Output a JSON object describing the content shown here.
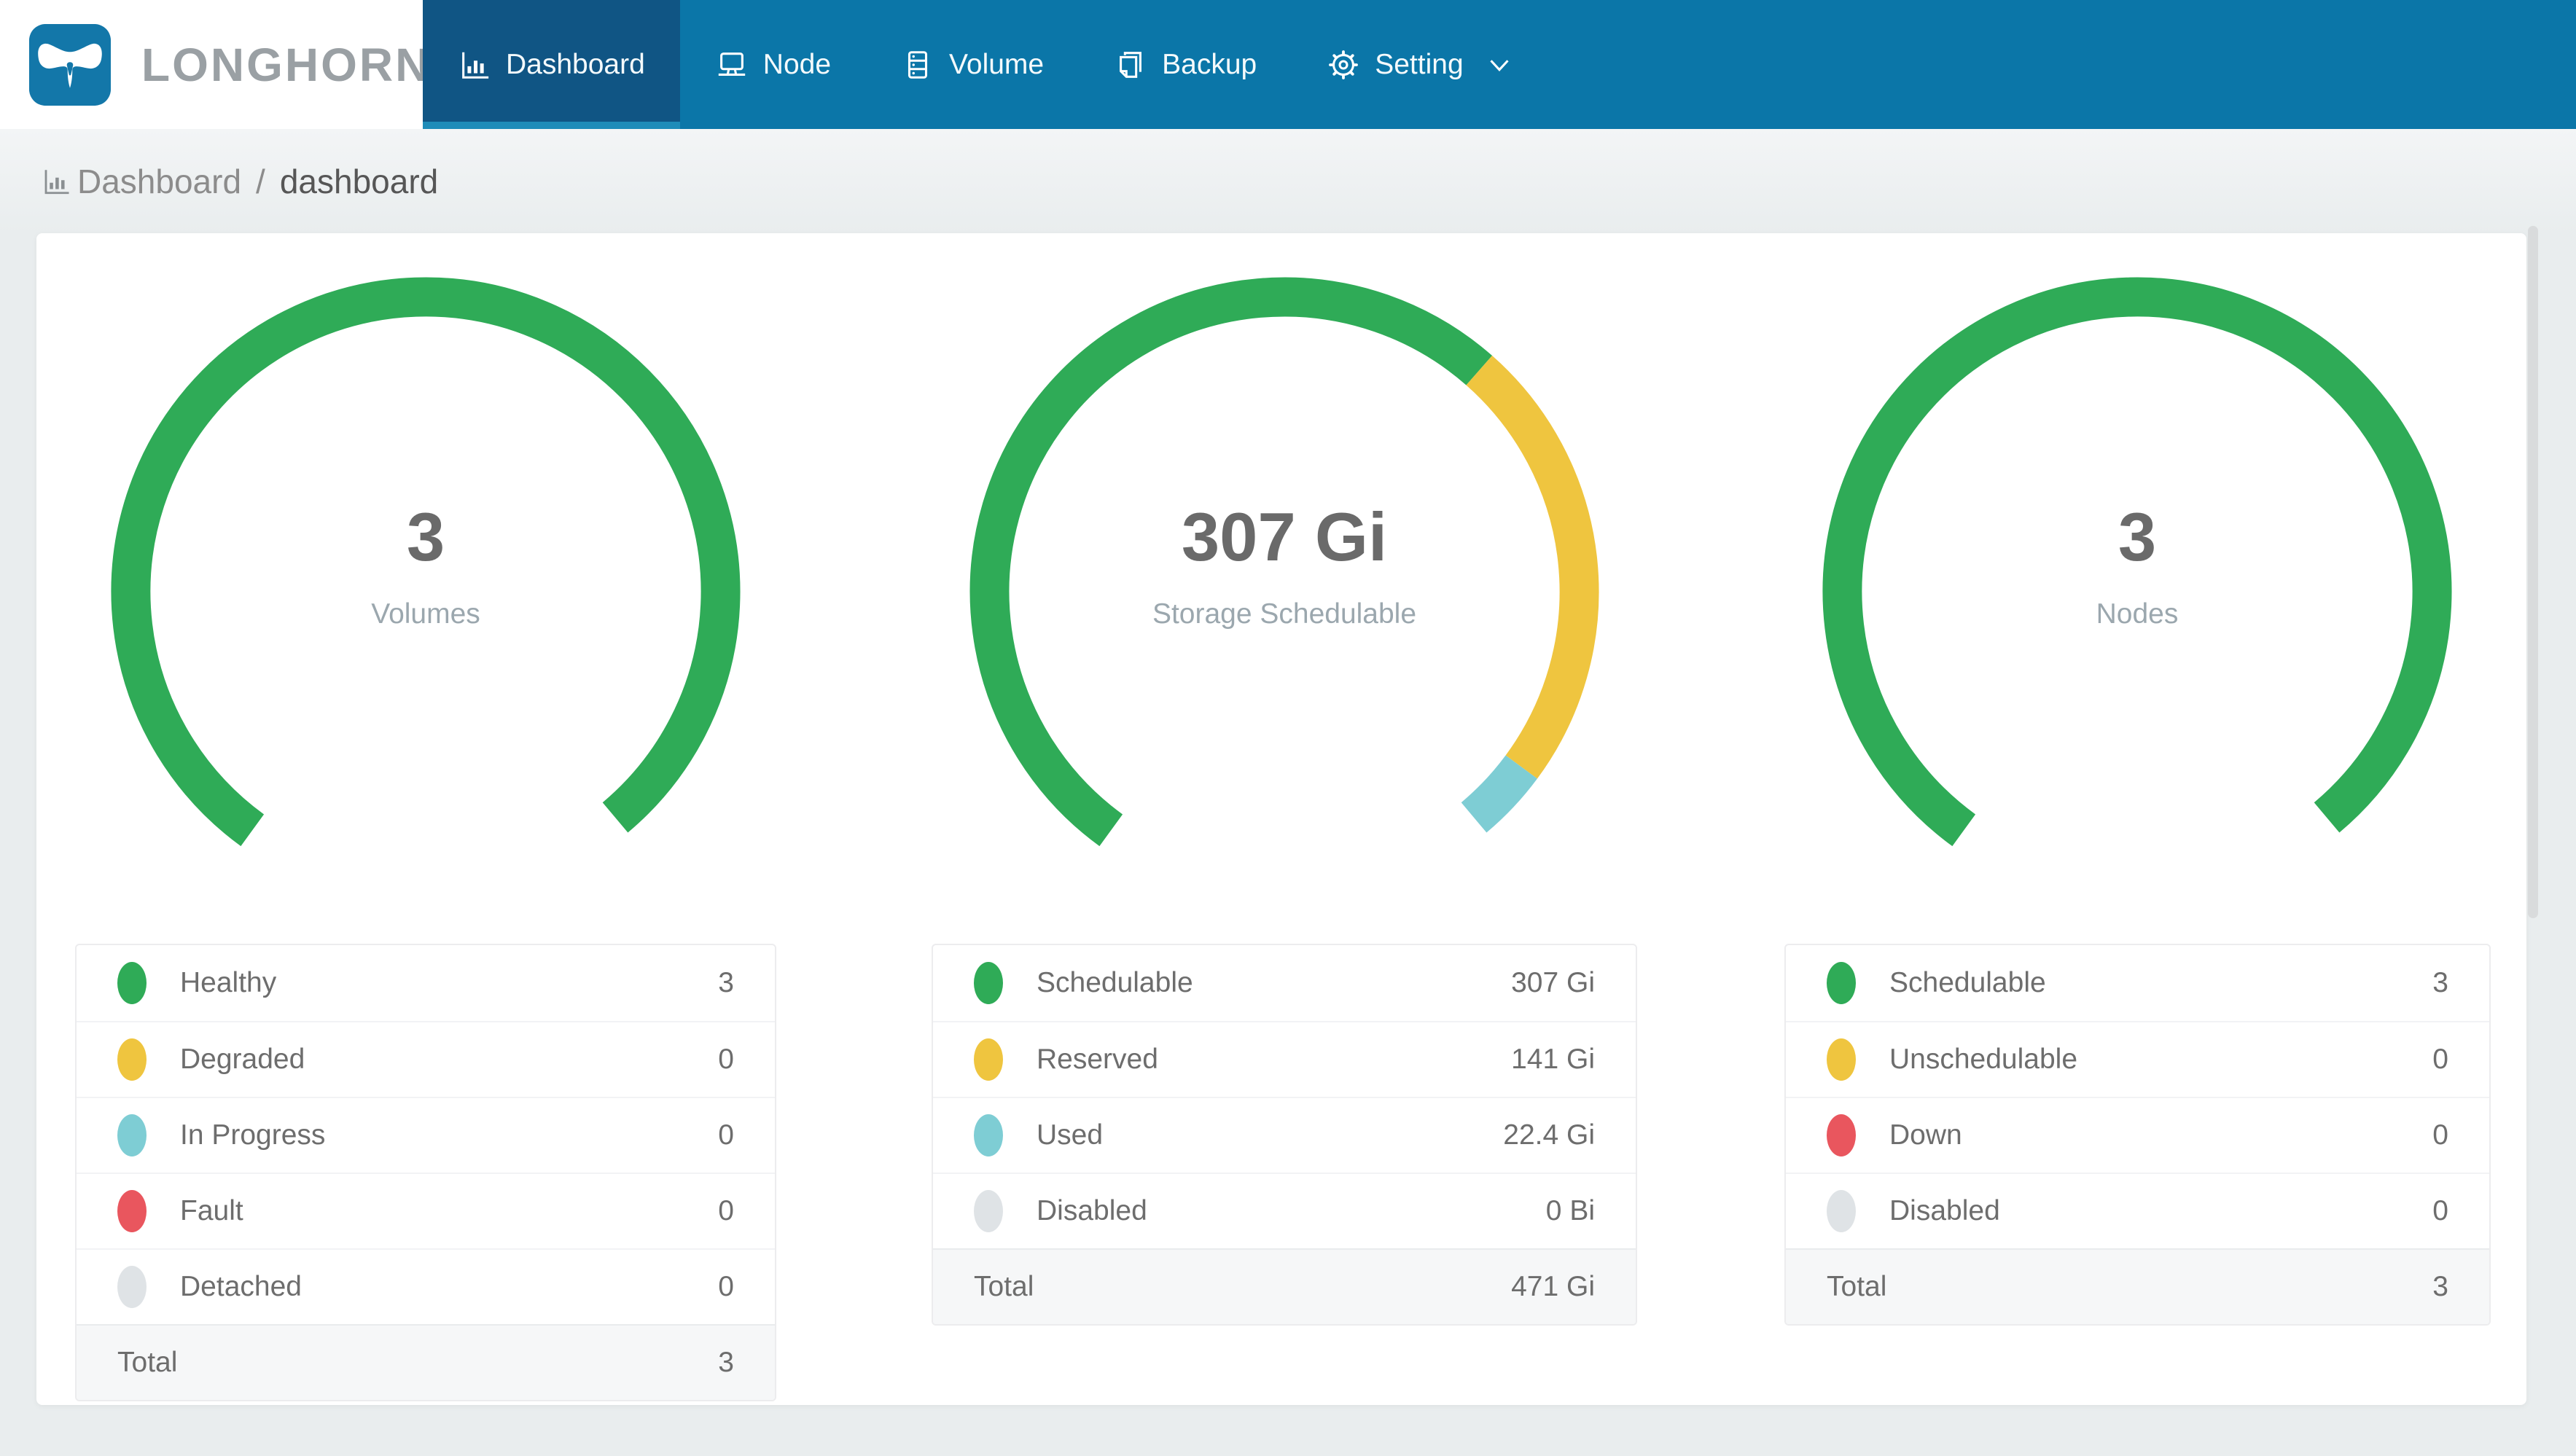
{
  "header": {
    "brand": "LONGHORN",
    "nav": [
      {
        "label": "Dashboard",
        "icon": "dashboard-icon",
        "active": true
      },
      {
        "label": "Node",
        "icon": "node-icon",
        "active": false
      },
      {
        "label": "Volume",
        "icon": "volume-icon",
        "active": false
      },
      {
        "label": "Backup",
        "icon": "backup-icon",
        "active": false
      },
      {
        "label": "Setting",
        "icon": "setting-icon",
        "active": false,
        "has_dropdown": true
      }
    ]
  },
  "breadcrumb": {
    "icon": "bar-chart-icon",
    "link": "Dashboard",
    "separator": "/",
    "current": "dashboard"
  },
  "colors": {
    "nav_bg": "#0b76a8",
    "nav_active_bg": "#105584",
    "nav_underline": "#1e8cb9",
    "green": "#2fab57",
    "yellow": "#efc53f",
    "teal": "#7ecdd4",
    "red": "#e9565e",
    "gray": "#dfe3e6"
  },
  "chart_data": [
    {
      "type": "pie",
      "variant": "gauge-donut",
      "title": "Volumes",
      "center_text": "3",
      "center_label": "Volumes",
      "start_angle_deg": 216,
      "sweep_deg": 284,
      "total": 3,
      "segments": [
        {
          "label": "Healthy",
          "value": 3,
          "color": "#2fab57"
        },
        {
          "label": "Degraded",
          "value": 0,
          "color": "#efc53f"
        },
        {
          "label": "In Progress",
          "value": 0,
          "color": "#7ecdd4"
        },
        {
          "label": "Fault",
          "value": 0,
          "color": "#e9565e"
        },
        {
          "label": "Detached",
          "value": 0,
          "color": "#dfe3e6"
        }
      ]
    },
    {
      "type": "pie",
      "variant": "gauge-donut",
      "title": "Storage Schedulable",
      "unit": "Gi",
      "center_text": "307 Gi",
      "center_label": "Storage Schedulable",
      "start_angle_deg": 216,
      "sweep_deg": 284,
      "total": 471,
      "segments": [
        {
          "label": "Schedulable",
          "value": 307,
          "color": "#2fab57"
        },
        {
          "label": "Reserved",
          "value": 141,
          "color": "#efc53f"
        },
        {
          "label": "Used",
          "value": 22.4,
          "color": "#7ecdd4"
        },
        {
          "label": "Disabled",
          "value": 0,
          "color": "#dfe3e6"
        }
      ]
    },
    {
      "type": "pie",
      "variant": "gauge-donut",
      "title": "Nodes",
      "center_text": "3",
      "center_label": "Nodes",
      "start_angle_deg": 216,
      "sweep_deg": 284,
      "total": 3,
      "segments": [
        {
          "label": "Schedulable",
          "value": 3,
          "color": "#2fab57"
        },
        {
          "label": "Unschedulable",
          "value": 0,
          "color": "#efc53f"
        },
        {
          "label": "Down",
          "value": 0,
          "color": "#e9565e"
        },
        {
          "label": "Disabled",
          "value": 0,
          "color": "#dfe3e6"
        }
      ]
    }
  ],
  "panels": [
    {
      "gauge": {
        "value": "3",
        "label": "Volumes"
      },
      "table": {
        "rows": [
          {
            "label": "Healthy",
            "value": "3",
            "color": "#2fab57"
          },
          {
            "label": "Degraded",
            "value": "0",
            "color": "#efc53f"
          },
          {
            "label": "In Progress",
            "value": "0",
            "color": "#7ecdd4"
          },
          {
            "label": "Fault",
            "value": "0",
            "color": "#e9565e"
          },
          {
            "label": "Detached",
            "value": "0",
            "color": "#dfe3e6"
          }
        ],
        "total_label": "Total",
        "total_value": "3"
      }
    },
    {
      "gauge": {
        "value": "307 Gi",
        "label": "Storage Schedulable"
      },
      "table": {
        "rows": [
          {
            "label": "Schedulable",
            "value": "307 Gi",
            "color": "#2fab57"
          },
          {
            "label": "Reserved",
            "value": "141 Gi",
            "color": "#efc53f"
          },
          {
            "label": "Used",
            "value": "22.4 Gi",
            "color": "#7ecdd4"
          },
          {
            "label": "Disabled",
            "value": "0 Bi",
            "color": "#dfe3e6"
          }
        ],
        "total_label": "Total",
        "total_value": "471 Gi"
      }
    },
    {
      "gauge": {
        "value": "3",
        "label": "Nodes"
      },
      "table": {
        "rows": [
          {
            "label": "Schedulable",
            "value": "3",
            "color": "#2fab57"
          },
          {
            "label": "Unschedulable",
            "value": "0",
            "color": "#efc53f"
          },
          {
            "label": "Down",
            "value": "0",
            "color": "#e9565e"
          },
          {
            "label": "Disabled",
            "value": "0",
            "color": "#dfe3e6"
          }
        ],
        "total_label": "Total",
        "total_value": "3"
      }
    }
  ]
}
